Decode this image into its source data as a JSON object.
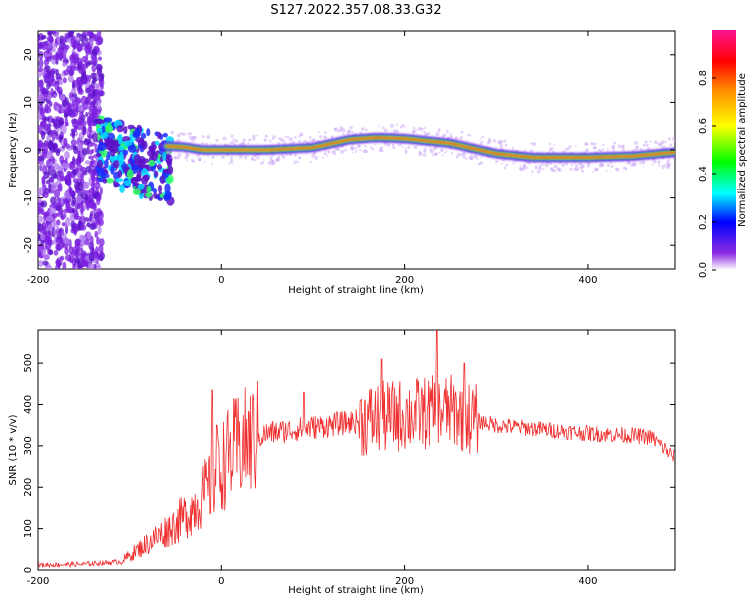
{
  "title": "S127.2022.357.08.33.G32",
  "chart_data": [
    {
      "type": "heatmap",
      "xlabel": "Height of straight line (km)",
      "ylabel": "Frequency (Hz)",
      "xlim": [
        -200,
        495
      ],
      "ylim": [
        -25,
        25
      ],
      "xticks": [
        -200,
        0,
        200,
        400
      ],
      "yticks": [
        -20,
        -10,
        0,
        10,
        20
      ],
      "grid": false,
      "ridge": [
        [
          -60,
          0.8
        ],
        [
          -40,
          0.6
        ],
        [
          -20,
          0
        ],
        [
          0,
          0
        ],
        [
          50,
          0
        ],
        [
          100,
          0.5
        ],
        [
          140,
          2.2
        ],
        [
          170,
          2.6
        ],
        [
          200,
          2.4
        ],
        [
          250,
          1.4
        ],
        [
          300,
          -0.8
        ],
        [
          340,
          -1.6
        ],
        [
          400,
          -1.6
        ],
        [
          450,
          -1.3
        ],
        [
          495,
          -0.5
        ]
      ],
      "colorbar": {
        "label": "Normalized spectral amplitude",
        "ticks": [
          "0.0",
          "0.2",
          "0.4",
          "0.6",
          "0.8"
        ],
        "range": [
          0,
          1
        ]
      }
    },
    {
      "type": "line",
      "xlabel": "Height of straight line (km)",
      "ylabel": "SNR (10 * v/v)",
      "xlim": [
        -200,
        495
      ],
      "ylim": [
        0,
        580
      ],
      "xticks": [
        -200,
        0,
        200,
        400
      ],
      "yticks": [
        0,
        100,
        200,
        300,
        400,
        500
      ],
      "grid": false,
      "series": [
        {
          "color": "#f03030",
          "envelope": [
            [
              -200,
              12
            ],
            [
              -150,
              14
            ],
            [
              -110,
              20
            ],
            [
              -90,
              50
            ],
            [
              -70,
              80
            ],
            [
              -50,
              110
            ],
            [
              -30,
              150
            ],
            [
              -10,
              210
            ],
            [
              0,
              250
            ],
            [
              10,
              280
            ],
            [
              20,
              300
            ],
            [
              50,
              330
            ],
            [
              100,
              345
            ],
            [
              150,
              360
            ],
            [
              200,
              375
            ],
            [
              250,
              385
            ],
            [
              280,
              360
            ],
            [
              300,
              350
            ],
            [
              350,
              340
            ],
            [
              400,
              330
            ],
            [
              450,
              325
            ],
            [
              470,
              320
            ],
            [
              495,
              270
            ]
          ],
          "peaks": [
            [
              -10,
              435
            ],
            [
              -5,
              350
            ],
            [
              90,
              430
            ],
            [
              175,
              510
            ],
            [
              235,
              585
            ],
            [
              265,
              500
            ]
          ]
        }
      ]
    }
  ]
}
